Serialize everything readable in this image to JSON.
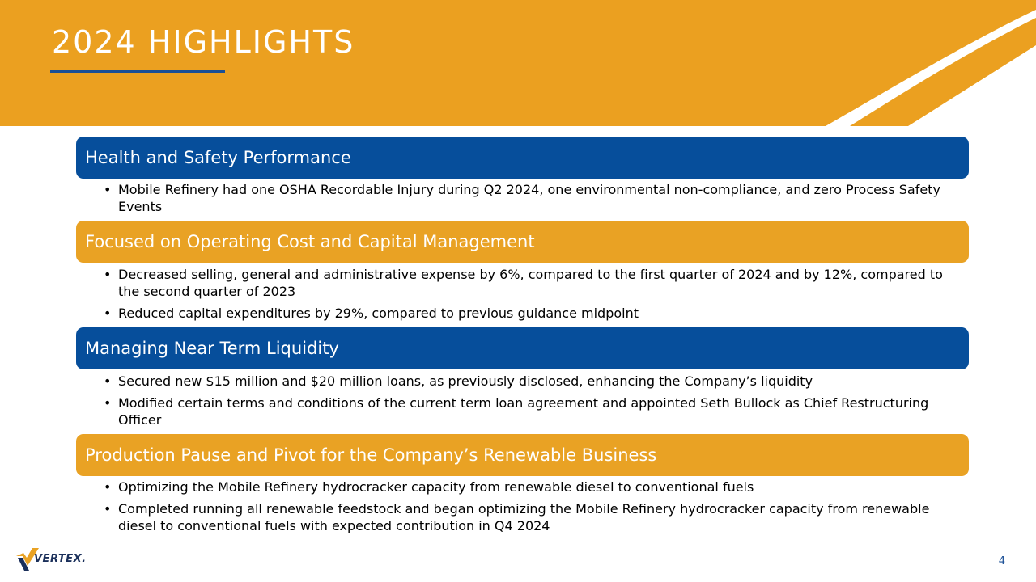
{
  "slide": {
    "title": "2024 HIGHLIGHTS",
    "page_number": "4"
  },
  "colors": {
    "banner_orange": "#eba020",
    "header_blue": "#064e9b",
    "header_orange": "#e9a224",
    "underline_blue": "#1a4f96"
  },
  "sections": [
    {
      "title": "Health and Safety Performance",
      "bullets": [
        "Mobile Refinery had one OSHA Recordable Injury during Q2 2024, one environmental non-compliance, and zero Process Safety Events"
      ]
    },
    {
      "title": "Focused on Operating Cost and Capital Management",
      "bullets": [
        "Decreased selling, general and administrative expense by 6%, compared to the first quarter of 2024 and by 12%, compared to the second quarter of 2023",
        "Reduced capital expenditures by 29%, compared to previous guidance midpoint"
      ]
    },
    {
      "title": "Managing Near Term Liquidity",
      "bullets": [
        "Secured new $15 million and $20 million loans, as previously disclosed, enhancing the Company’s liquidity",
        "Modified certain terms and conditions of the current term loan agreement and appointed Seth Bullock as Chief Restructuring Officer"
      ]
    },
    {
      "title": "Production Pause and Pivot for the Company’s Renewable Business",
      "bullets": [
        "Optimizing  the Mobile Refinery hydrocracker capacity from renewable diesel to conventional fuels",
        "Completed running all renewable feedstock and began optimizing the Mobile Refinery hydrocracker capacity from renewable diesel to conventional fuels with expected contribution in Q4 2024"
      ]
    }
  ],
  "footer": {
    "logo_text": "VERTEX.",
    "logo_icon": "vertex-checkmark-logo"
  }
}
